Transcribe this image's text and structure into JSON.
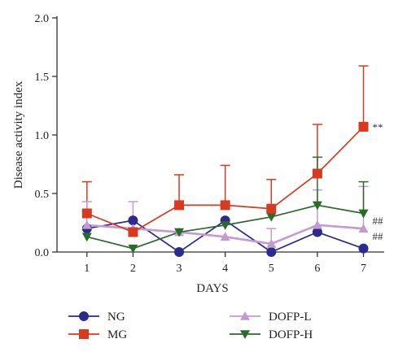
{
  "chart_data": {
    "type": "line",
    "title": "",
    "xlabel": "DAYS",
    "ylabel": "Disease activity index",
    "x": [
      1,
      2,
      3,
      4,
      5,
      6,
      7
    ],
    "x_tick_labels": [
      "1",
      "2",
      "3",
      "4",
      "5",
      "6",
      "7"
    ],
    "ylim": [
      0,
      2.0
    ],
    "y_ticks": [
      0.0,
      0.5,
      1.0,
      1.5,
      2.0
    ],
    "y_tick_labels": [
      "0.0",
      "0.5",
      "1.0",
      "1.5",
      "2.0"
    ],
    "grid": false,
    "legend_position": "bottom",
    "series": [
      {
        "name": "NG",
        "color": "#2c2a8c",
        "marker": "circle",
        "values": [
          0.2,
          0.27,
          0.0,
          0.27,
          0.0,
          0.17,
          0.03
        ],
        "error": [
          0.0,
          0.0,
          0.0,
          0.0,
          0.0,
          0.0,
          0.0
        ]
      },
      {
        "name": "MG",
        "color": "#d83a20",
        "marker": "square",
        "values": [
          0.33,
          0.17,
          0.4,
          0.4,
          0.37,
          0.67,
          1.07
        ],
        "error": [
          0.27,
          0.0,
          0.26,
          0.34,
          0.25,
          0.42,
          0.52
        ]
      },
      {
        "name": "DOFP-L",
        "color": "#c39ad2",
        "marker": "triangle-up",
        "values": [
          0.23,
          0.2,
          0.17,
          0.13,
          0.07,
          0.23,
          0.2
        ],
        "error": [
          0.2,
          0.23,
          0.0,
          0.0,
          0.13,
          0.3,
          0.36
        ]
      },
      {
        "name": "DOFP-H",
        "color": "#2a6a2a",
        "marker": "triangle-down",
        "values": [
          0.13,
          0.03,
          0.17,
          0.23,
          0.3,
          0.4,
          0.33
        ],
        "error": [
          0.0,
          0.0,
          0.0,
          0.0,
          0.0,
          0.41,
          0.27
        ]
      }
    ],
    "annotations": [
      {
        "text": "**",
        "x": 7,
        "y": 1.07
      },
      {
        "text": "##",
        "x": 7,
        "y": 0.27
      },
      {
        "text": "##",
        "x": 7,
        "y": 0.14
      }
    ]
  }
}
